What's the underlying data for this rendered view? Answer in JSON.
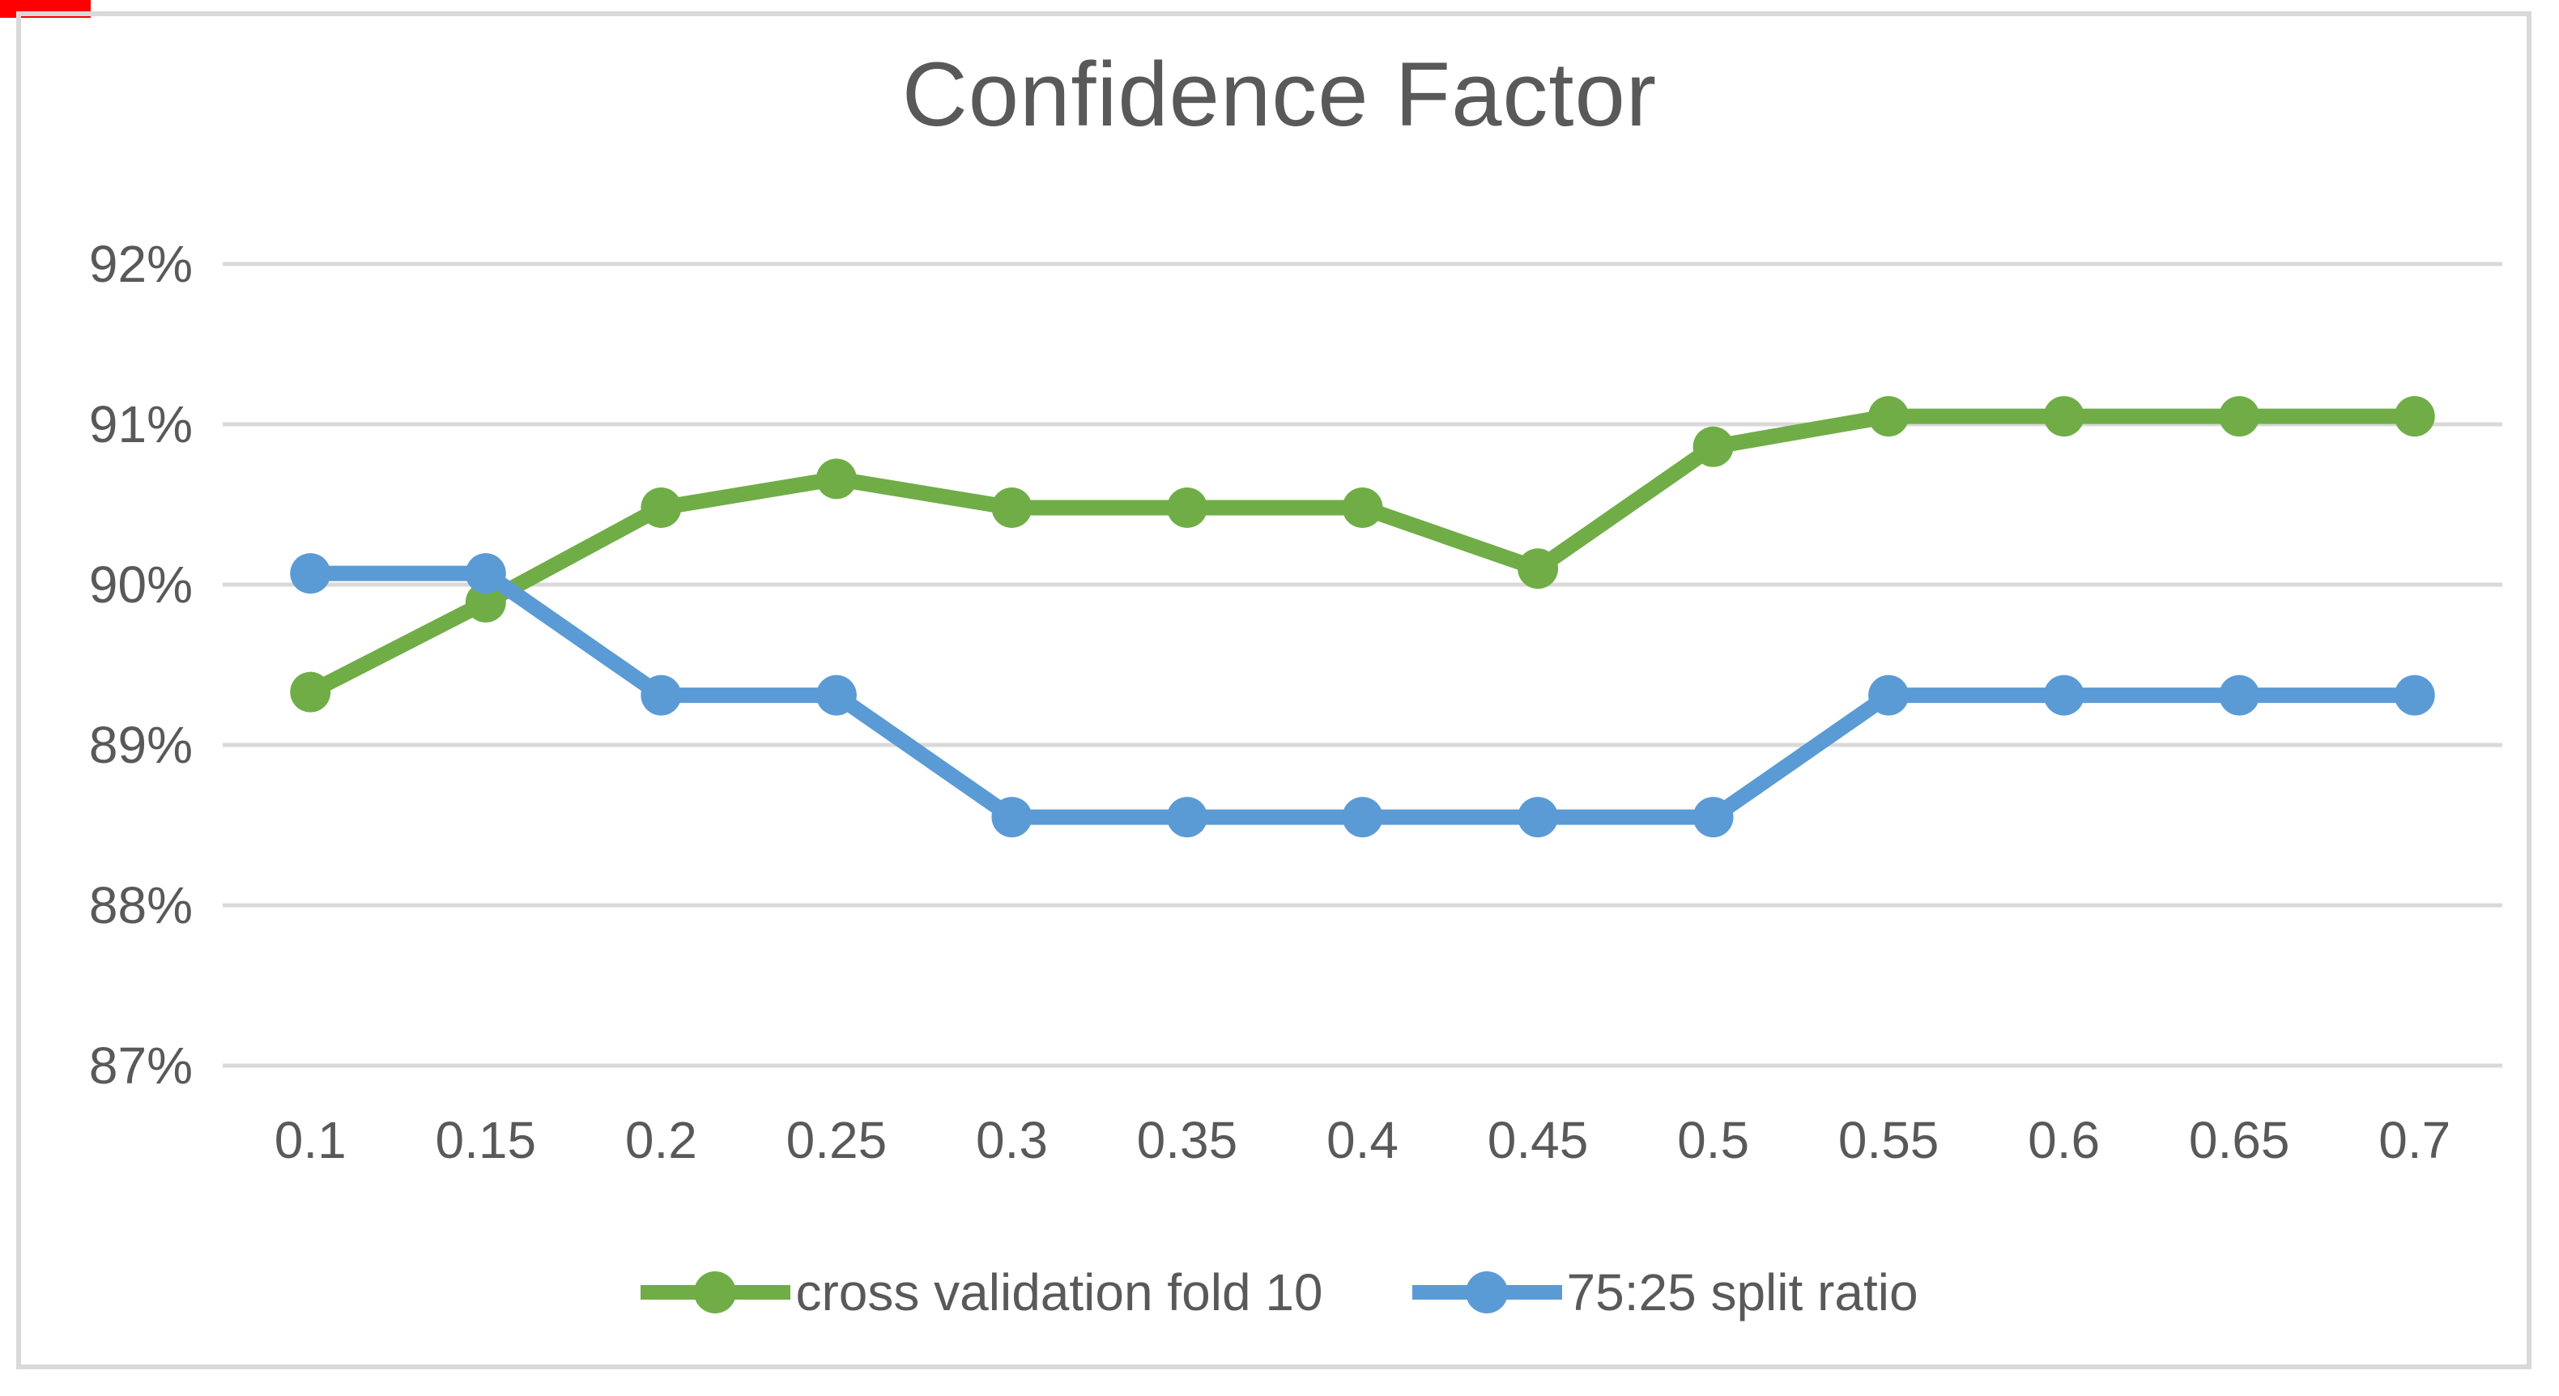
{
  "colors": {
    "background": "#FFFFFF",
    "frame_border": "#D9D9D9",
    "gridline": "#D9D9D9",
    "text": "#595959",
    "series_green": "#70AD47",
    "series_blue": "#5B9BD5",
    "corner_artifact": "#FF0000"
  },
  "chart_data": {
    "type": "line",
    "title": "Confidence Factor",
    "xlabel": "",
    "ylabel": "",
    "categories": [
      "0.1",
      "0.15",
      "0.2",
      "0.25",
      "0.3",
      "0.35",
      "0.4",
      "0.45",
      "0.5",
      "0.55",
      "0.6",
      "0.65",
      "0.7"
    ],
    "series": [
      {
        "name": "cross validation fold 10",
        "color": "#70AD47",
        "marker": "circle",
        "values": [
          89.33,
          89.89,
          90.48,
          90.66,
          90.48,
          90.48,
          90.48,
          90.1,
          90.86,
          91.05,
          91.05,
          91.05,
          91.05
        ]
      },
      {
        "name": "75:25 split ratio",
        "color": "#5B9BD5",
        "marker": "circle",
        "values": [
          90.07,
          90.07,
          89.31,
          89.31,
          88.55,
          88.55,
          88.55,
          88.55,
          88.55,
          89.31,
          89.31,
          89.31,
          89.31
        ]
      }
    ],
    "y_axis": {
      "tick_labels": [
        "92%",
        "91%",
        "90%",
        "89%",
        "88%",
        "87%"
      ],
      "tick_values": [
        92,
        91,
        90,
        89,
        88,
        87
      ],
      "min": 87,
      "max": 92,
      "unit": "%"
    },
    "grid": true,
    "legend_position": "bottom"
  }
}
